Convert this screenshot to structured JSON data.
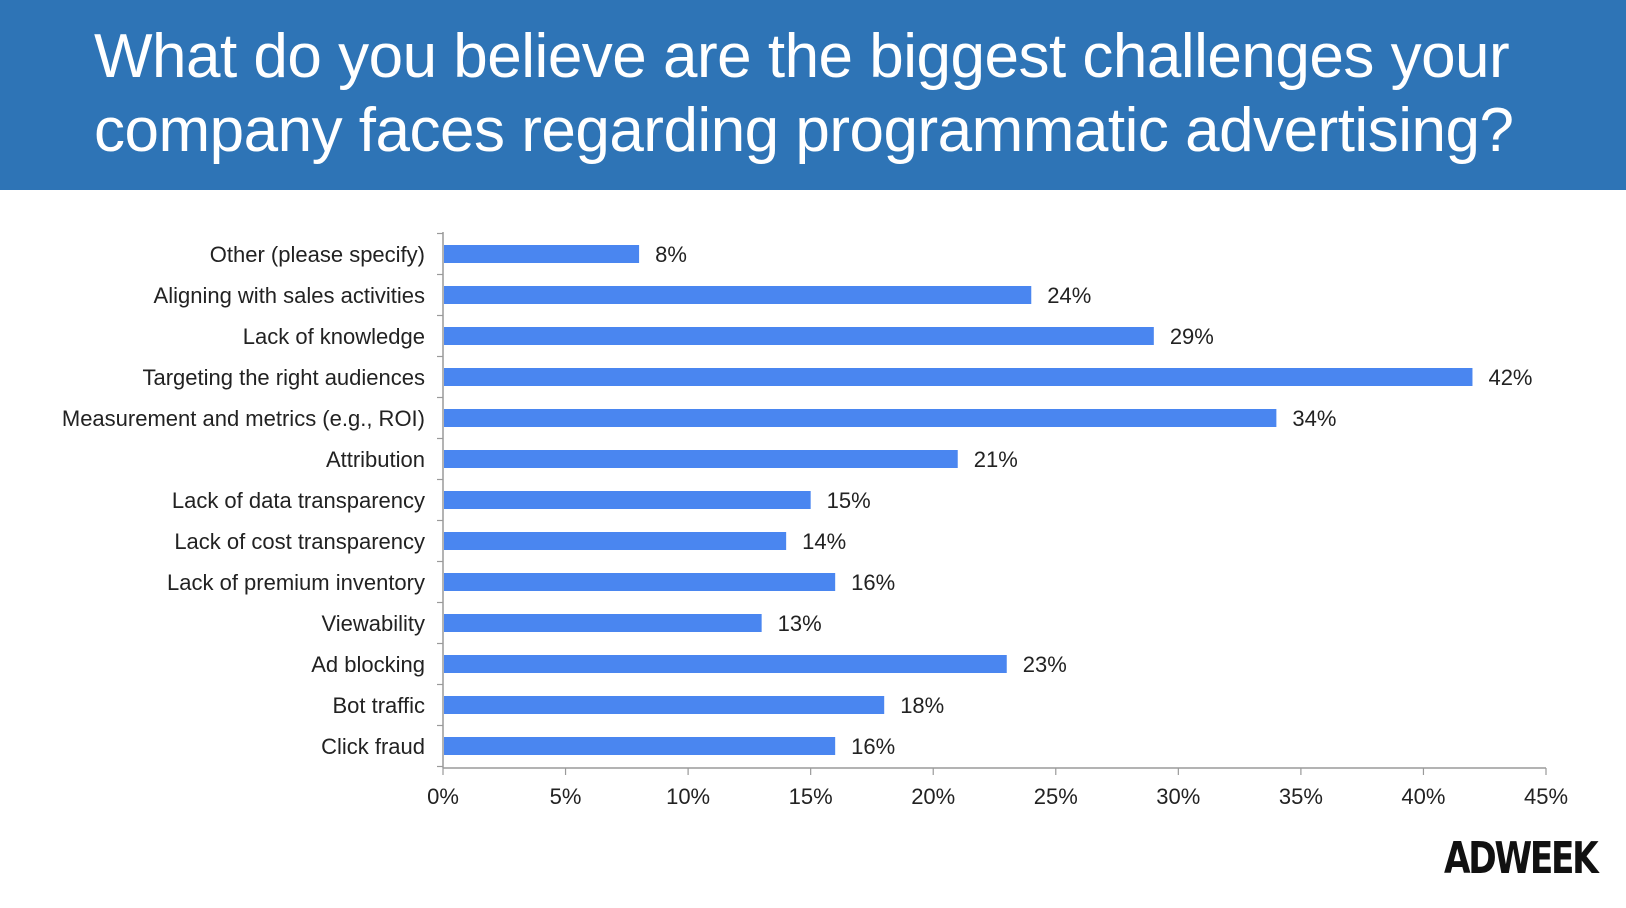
{
  "header": {
    "title": "What do you believe are the biggest challenges your company faces regarding programmatic advertising?"
  },
  "brand": {
    "logo_text": "ADWEEK"
  },
  "colors": {
    "header_bg": "#2e74b6",
    "bar": "#4a86f0",
    "axis": "#9a9a9a"
  },
  "chart_data": {
    "type": "bar",
    "orientation": "horizontal",
    "categories": [
      "Other (please specify)",
      "Aligning with sales activities",
      "Lack of knowledge",
      "Targeting the right audiences",
      "Measurement and metrics (e.g., ROI)",
      "Attribution",
      "Lack of data transparency",
      "Lack of cost transparency",
      "Lack of premium inventory",
      "Viewability",
      "Ad blocking",
      "Bot traffic",
      "Click fraud"
    ],
    "values": [
      8,
      24,
      29,
      42,
      34,
      21,
      15,
      14,
      16,
      13,
      23,
      18,
      16
    ],
    "value_labels": [
      "8%",
      "24%",
      "29%",
      "42%",
      "34%",
      "21%",
      "15%",
      "14%",
      "16%",
      "13%",
      "23%",
      "18%",
      "16%"
    ],
    "xlim": [
      0,
      45
    ],
    "xticks": [
      "0%",
      "5%",
      "10%",
      "15%",
      "20%",
      "25%",
      "30%",
      "35%",
      "40%",
      "45%"
    ],
    "xtick_values": [
      0,
      5,
      10,
      15,
      20,
      25,
      30,
      35,
      40,
      45
    ],
    "grid": false,
    "legend": "none"
  }
}
